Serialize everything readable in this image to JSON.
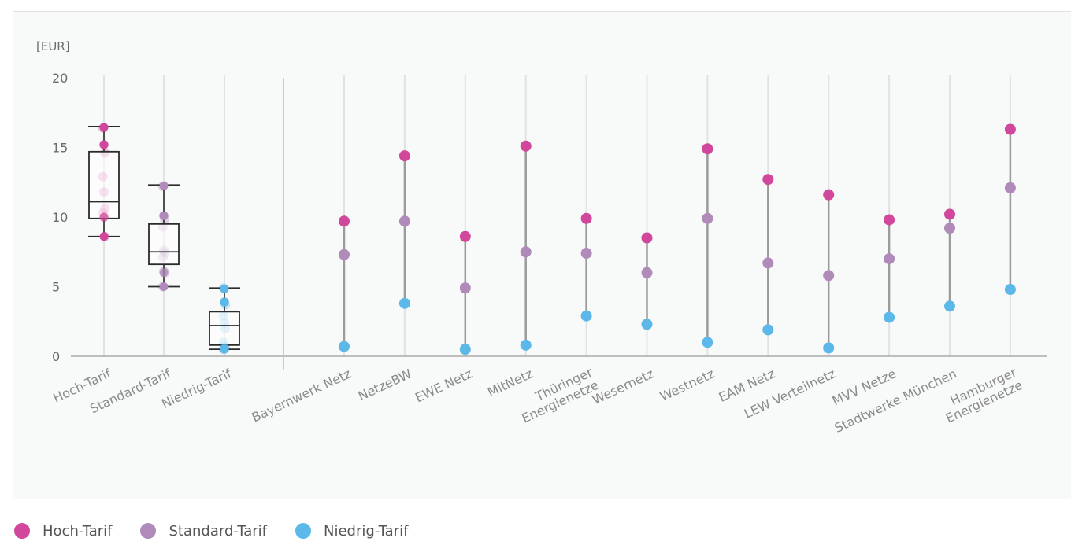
{
  "chart_data": {
    "type": "scatter",
    "unit_label": "[EUR]",
    "ylim": [
      0,
      20
    ],
    "yticks": [
      0,
      5,
      10,
      15,
      20
    ],
    "grid": true,
    "legend_position": "bottom-left",
    "series_names": [
      "Hoch-Tarif",
      "Standard-Tarif",
      "Niedrig-Tarif"
    ],
    "colors": {
      "hoch": "#d1479b",
      "standard": "#b08ab8",
      "niedrig": "#5bb8e8"
    },
    "boxplots": [
      {
        "label": "Hoch-Tarif",
        "series": "hoch",
        "min": 8.6,
        "q1": 9.9,
        "median": 11.1,
        "q3": 14.7,
        "max": 16.5,
        "points": [
          16.4,
          15.2,
          14.6,
          12.9,
          11.8,
          10.6,
          10.3,
          10.0,
          8.6
        ]
      },
      {
        "label": "Standard-Tarif",
        "series": "standard",
        "min": 5.0,
        "q1": 6.6,
        "median": 7.5,
        "q3": 9.5,
        "max": 12.3,
        "points": [
          12.2,
          10.1,
          9.8,
          9.3,
          7.6,
          7.4,
          7.1,
          6.1,
          6.0,
          5.0
        ]
      },
      {
        "label": "Niedrig-Tarif",
        "series": "niedrig",
        "min": 0.5,
        "q1": 0.8,
        "median": 2.2,
        "q3": 3.2,
        "max": 4.9,
        "points": [
          4.9,
          3.9,
          3.7,
          2.9,
          2.4,
          2.0,
          1.0,
          0.7,
          0.6,
          0.5
        ]
      }
    ],
    "providers": [
      {
        "label": "Bayernwerk Netz",
        "hoch": 9.7,
        "standard": 7.3,
        "niedrig": 0.7
      },
      {
        "label": "NetzeBW",
        "hoch": 14.4,
        "standard": 9.7,
        "niedrig": 3.8
      },
      {
        "label": "EWE Netz",
        "hoch": 8.6,
        "standard": 4.9,
        "niedrig": 0.5
      },
      {
        "label": "MitNetz",
        "hoch": 15.1,
        "standard": 7.5,
        "niedrig": 0.8
      },
      {
        "label": "Thüringer Energienetze",
        "hoch": 9.9,
        "standard": 7.4,
        "niedrig": 2.9
      },
      {
        "label": "Wesernetz",
        "hoch": 8.5,
        "standard": 6.0,
        "niedrig": 2.3
      },
      {
        "label": "Westnetz",
        "hoch": 14.9,
        "standard": 9.9,
        "niedrig": 1.0
      },
      {
        "label": "EAM Netz",
        "hoch": 12.7,
        "standard": 6.7,
        "niedrig": 1.9
      },
      {
        "label": "LEW Verteilnetz",
        "hoch": 11.6,
        "standard": 5.8,
        "niedrig": 0.6
      },
      {
        "label": "MVV Netze",
        "hoch": 9.8,
        "standard": 7.0,
        "niedrig": 2.8
      },
      {
        "label": "Stadtwerke München",
        "hoch": 10.2,
        "standard": 9.2,
        "niedrig": 3.6
      },
      {
        "label": "Hamburger Energienetze",
        "hoch": 16.3,
        "standard": 12.1,
        "niedrig": 4.8
      }
    ]
  },
  "legend": [
    {
      "label": "Hoch-Tarif",
      "series": "hoch"
    },
    {
      "label": "Standard-Tarif",
      "series": "standard"
    },
    {
      "label": "Niedrig-Tarif",
      "series": "niedrig"
    }
  ]
}
